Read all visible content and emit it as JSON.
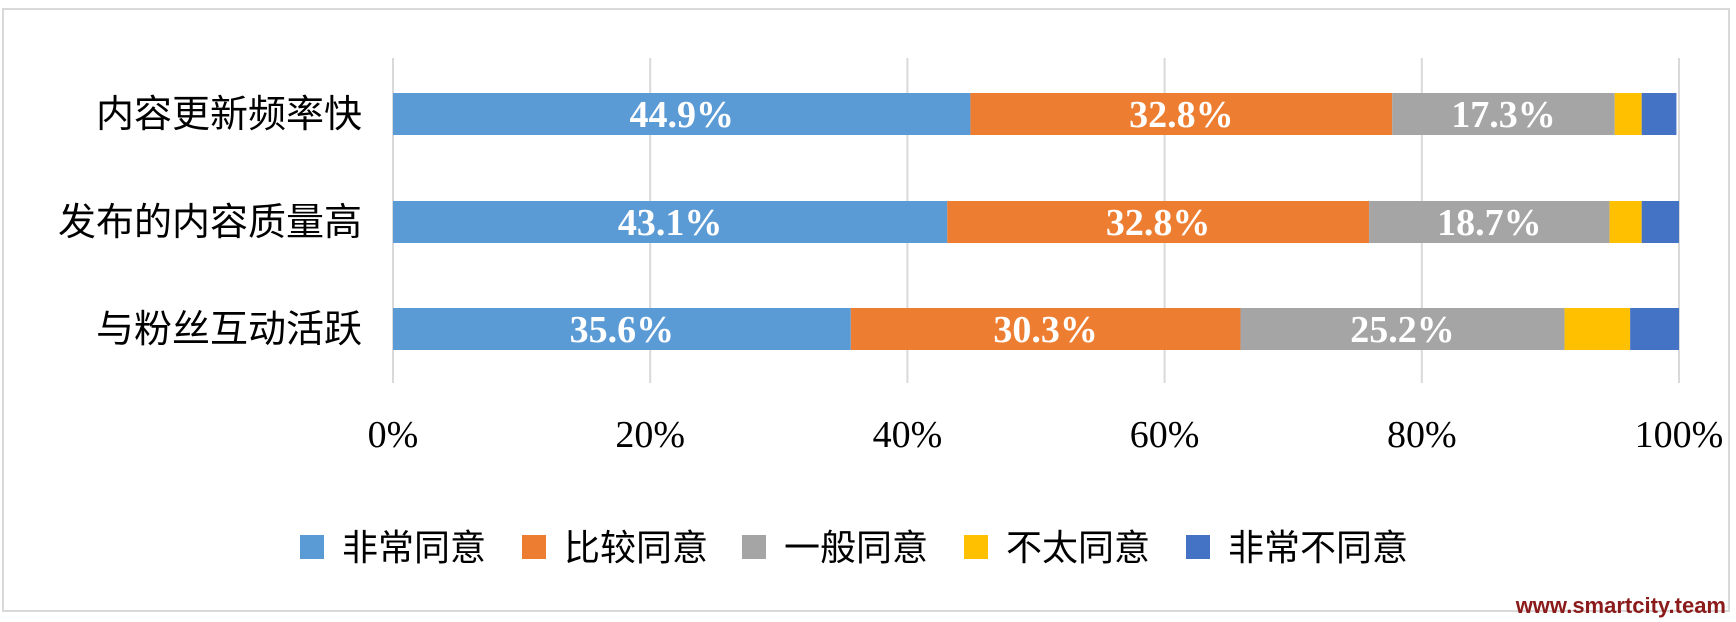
{
  "chart_data": {
    "type": "bar",
    "orientation": "horizontal",
    "stacked": "percent",
    "categories": [
      "内容更新频率快",
      "发布的内容质量高",
      "与粉丝互动活跃"
    ],
    "series": [
      {
        "name": "非常同意",
        "color": "#5b9bd5",
        "values": [
          44.9,
          43.1,
          35.6
        ],
        "labels": [
          "44.9%",
          "43.1%",
          "35.6%"
        ]
      },
      {
        "name": "比较同意",
        "color": "#ed7d31",
        "values": [
          32.8,
          32.8,
          30.3
        ],
        "labels": [
          "32.8%",
          "32.8%",
          "30.3%"
        ]
      },
      {
        "name": "一般同意",
        "color": "#a5a5a5",
        "values": [
          17.3,
          18.7,
          25.2
        ],
        "labels": [
          "17.3%",
          "18.7%",
          "25.2%"
        ]
      },
      {
        "name": "不太同意",
        "color": "#ffc000",
        "values": [
          2.1,
          2.5,
          5.1
        ],
        "labels": [
          "",
          "",
          ""
        ]
      },
      {
        "name": "非常不同意",
        "color": "#4472c4",
        "values": [
          2.7,
          2.9,
          3.8
        ],
        "labels": [
          "",
          "",
          ""
        ]
      }
    ],
    "xticks": [
      "0%",
      "20%",
      "40%",
      "60%",
      "80%",
      "100%"
    ],
    "xlim": [
      0,
      100
    ],
    "grid": "vertical",
    "legend": "bottom",
    "title": "",
    "xlabel": "",
    "ylabel": ""
  },
  "watermark": "www.smartcity.team"
}
